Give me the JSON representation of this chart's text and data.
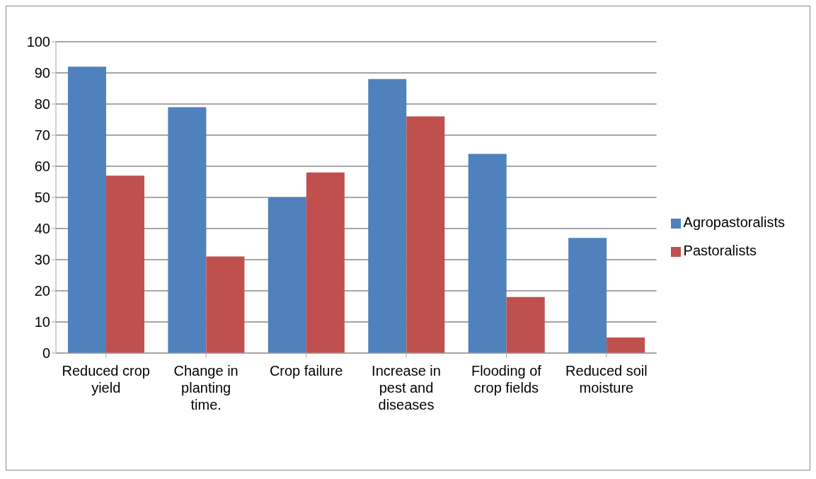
{
  "chart_data": {
    "type": "bar",
    "categories": [
      "Reduced crop yield",
      "Change in planting time.",
      "Crop failure",
      "Increase in pest and diseases",
      "Flooding of crop fields",
      "Reduced soil moisture"
    ],
    "series": [
      {
        "name": "Agropastoralists",
        "color": "#4f81bd",
        "values": [
          92,
          79,
          50,
          88,
          64,
          37
        ]
      },
      {
        "name": "Pastoralists",
        "color": "#c0504d",
        "values": [
          57,
          31,
          58,
          76,
          18,
          5
        ]
      }
    ],
    "ylim": [
      0,
      100
    ],
    "yticks": [
      0,
      10,
      20,
      30,
      40,
      50,
      60,
      70,
      80,
      90,
      100
    ],
    "grid": "y",
    "legend": "right"
  }
}
